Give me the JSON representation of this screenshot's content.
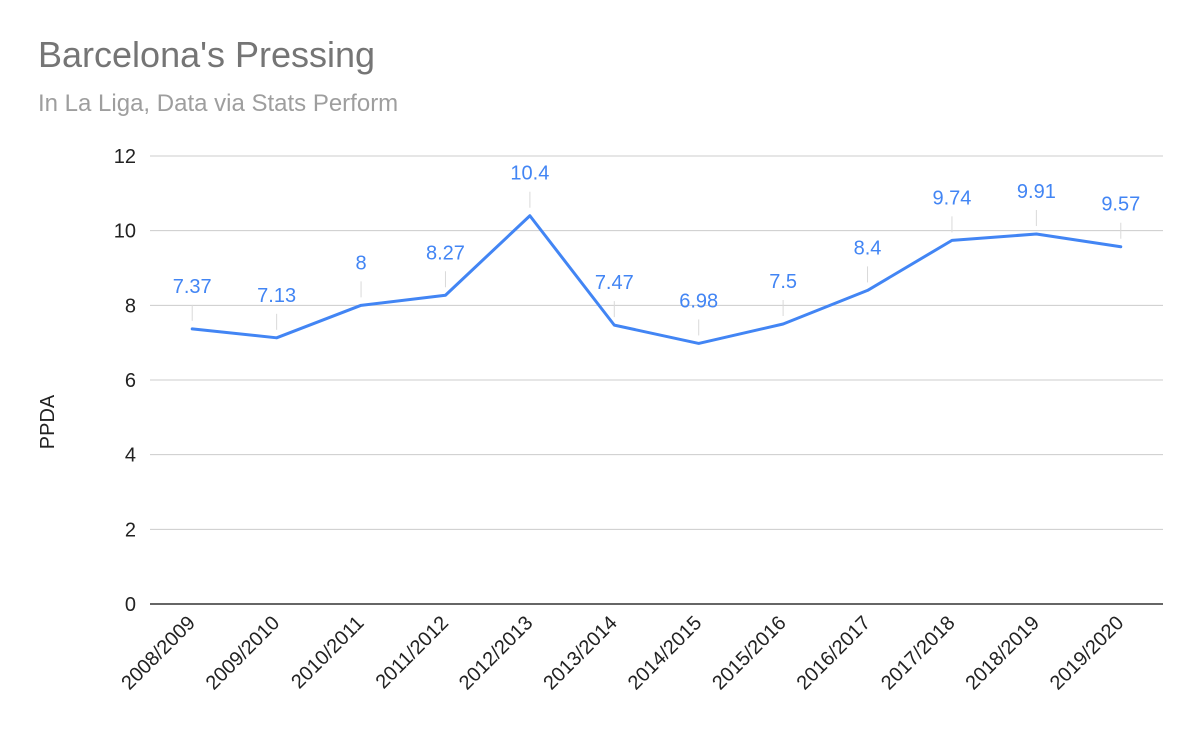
{
  "chart_data": {
    "type": "line",
    "title": "Barcelona's Pressing",
    "subtitle": "In La Liga, Data via Stats Perform",
    "xlabel": "",
    "ylabel": "PPDA",
    "ylim": [
      0,
      12
    ],
    "yticks": [
      0,
      2,
      4,
      6,
      8,
      10,
      12
    ],
    "grid": true,
    "categories": [
      "2008/2009",
      "2009/2010",
      "2010/2011",
      "2011/2012",
      "2012/2013",
      "2013/2014",
      "2014/2015",
      "2015/2016",
      "2016/2017",
      "2017/2018",
      "2018/2019",
      "2019/2020"
    ],
    "series": [
      {
        "values": [
          7.37,
          7.13,
          8,
          8.27,
          10.4,
          7.47,
          6.98,
          7.5,
          8.4,
          9.74,
          9.91,
          9.57
        ],
        "labels": [
          "7.37",
          "7.13",
          "8",
          "8.27",
          "10.4",
          "7.47",
          "6.98",
          "7.5",
          "8.4",
          "9.74",
          "9.91",
          "9.57"
        ],
        "color": "#4285f4"
      }
    ]
  }
}
